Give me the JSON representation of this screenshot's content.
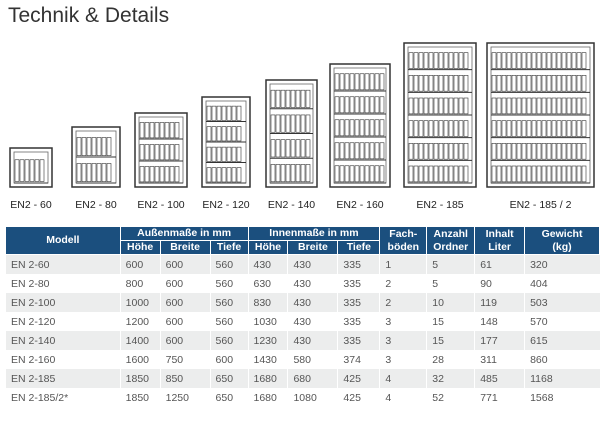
{
  "header": {
    "title": "Technik & Details"
  },
  "models": [
    "EN2 - 60",
    "EN2 - 80",
    "EN2 - 100",
    "EN2 - 120",
    "EN2 - 140",
    "EN2 - 160",
    "EN2 - 185",
    "EN2 - 185 / 2"
  ],
  "table": {
    "head": {
      "model": "Modell",
      "outer": "Außenmaße in mm",
      "outer_cols": [
        "Höhe",
        "Breite",
        "Tiefe"
      ],
      "inner": "Innenmaße in mm",
      "inner_cols": [
        "Höhe",
        "Breite",
        "Tiefe"
      ],
      "shelves": [
        "Fach-",
        "böden"
      ],
      "folders": [
        "Anzahl",
        "Ordner"
      ],
      "volume": [
        "Inhalt",
        "Liter"
      ],
      "weight": [
        "Gewicht",
        "(kg)"
      ]
    },
    "rows": [
      [
        "EN 2-60",
        600,
        600,
        560,
        430,
        430,
        335,
        1,
        5,
        61,
        320
      ],
      [
        "EN 2-80",
        800,
        600,
        560,
        630,
        430,
        335,
        2,
        5,
        90,
        404
      ],
      [
        "EN 2-100",
        1000,
        600,
        560,
        830,
        430,
        335,
        2,
        10,
        119,
        503
      ],
      [
        "EN 2-120",
        1200,
        600,
        560,
        1030,
        430,
        335,
        3,
        15,
        148,
        570
      ],
      [
        "EN 2-140",
        1400,
        600,
        560,
        1230,
        430,
        335,
        3,
        15,
        177,
        615
      ],
      [
        "EN 2-160",
        1600,
        750,
        600,
        1430,
        580,
        374,
        3,
        28,
        311,
        860
      ],
      [
        "EN 2-185",
        1850,
        850,
        650,
        1680,
        680,
        425,
        4,
        32,
        485,
        1168
      ],
      [
        "EN 2-185/2*",
        1850,
        1250,
        650,
        1680,
        1080,
        425,
        4,
        52,
        771,
        1568
      ]
    ]
  }
}
